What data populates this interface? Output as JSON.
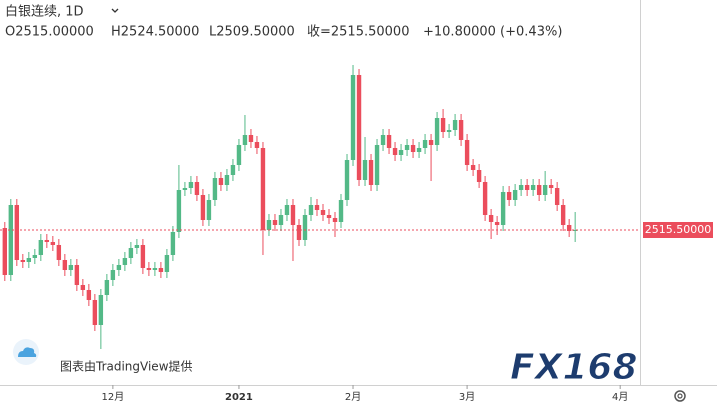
{
  "chart_data": {
    "type": "candlestick",
    "title": "白银连续, 1D",
    "header": [
      "O2515.00000",
      "H2524.50000",
      "L2509.50000",
      "收=2515.50000",
      "+10.80000 (+0.43%)"
    ],
    "watermark": "图表由TradingView提供",
    "logo": "FX168",
    "up_color": "#53b987",
    "down_color": "#eb4d5c",
    "last_price": {
      "value": 2515.5,
      "label": "2515.50000"
    },
    "last_price_color": "#eb4d5c",
    "xlim": [
      -0.8,
      105.8
    ],
    "xticks": [
      {
        "value": 18,
        "label": "12月"
      },
      {
        "value": 39,
        "label": "2021"
      },
      {
        "value": 58,
        "label": "2月"
      },
      {
        "value": 77,
        "label": "3月"
      },
      {
        "value": 102.5,
        "label": "4月"
      }
    ],
    "ylim": [
      2438,
      2630.5
    ],
    "series": {
      "open": [
        2516.5,
        2493,
        2528,
        2500.5,
        2499.5,
        2501.5,
        2503,
        2510.5,
        2509.5,
        2508,
        2500.5,
        2495.5,
        2498,
        2488,
        2485.5,
        2480.5,
        2468,
        2483,
        2490.5,
        2495.5,
        2498,
        2501.5,
        2506.5,
        2508,
        2496.5,
        2495.5,
        2496.5,
        2494.5,
        2503,
        2514.5,
        2535.5,
        2536.5,
        2539.5,
        2533,
        2520.5,
        2530.5,
        2541.5,
        2538,
        2543,
        2548,
        2558,
        2563,
        2559.5,
        2556.5,
        2515.5,
        2520.5,
        2518,
        2523,
        2528,
        2518,
        2510.5,
        2523,
        2528,
        2525.5,
        2523,
        2521.5,
        2519.5,
        2530.5,
        2550.5,
        2593,
        2540.5,
        2550.5,
        2538,
        2558,
        2563,
        2556.5,
        2553,
        2555.5,
        2558,
        2554.5,
        2556.5,
        2560.5,
        2558,
        2571.5,
        2564.5,
        2565.5,
        2570.5,
        2560.5,
        2548,
        2545.5,
        2539.5,
        2523,
        2519.5,
        2518,
        2534.5,
        2530.5,
        2535.5,
        2538,
        2535.5,
        2538,
        2533,
        2538,
        2536.5,
        2528,
        2518,
        2515
      ],
      "high": [
        2519.5,
        2531,
        2531,
        2503.5,
        2504.5,
        2506,
        2513.5,
        2513.5,
        2512.5,
        2511,
        2503.5,
        2501,
        2501,
        2491,
        2488.5,
        2483.5,
        2486,
        2493.5,
        2498.5,
        2501,
        2504.5,
        2509.5,
        2511,
        2511,
        2499.5,
        2499.5,
        2499.5,
        2506,
        2517.5,
        2548,
        2539.5,
        2542.5,
        2542.5,
        2536,
        2533.5,
        2544.5,
        2544.5,
        2546,
        2551,
        2561,
        2573,
        2566,
        2562.5,
        2559.5,
        2523.5,
        2523.5,
        2526,
        2531,
        2531,
        2521,
        2526,
        2532,
        2531,
        2528.5,
        2526,
        2524.5,
        2533.5,
        2553.5,
        2598,
        2596,
        2562,
        2553.5,
        2561,
        2566,
        2566,
        2559.5,
        2558.5,
        2561,
        2561,
        2559.5,
        2563.5,
        2563.5,
        2574.5,
        2576,
        2568.5,
        2573.5,
        2573.5,
        2563.5,
        2551,
        2548.5,
        2542.5,
        2526,
        2522.5,
        2537.5,
        2537.5,
        2538.5,
        2541,
        2541,
        2541,
        2541,
        2545,
        2541,
        2539.5,
        2531,
        2521,
        2524.5
      ],
      "low": [
        2490,
        2490,
        2497.5,
        2496.5,
        2496.5,
        2498.5,
        2500,
        2506.5,
        2505,
        2497.5,
        2492.5,
        2492.5,
        2485,
        2482.5,
        2477.5,
        2465,
        2456,
        2480,
        2487.5,
        2492.5,
        2495,
        2498.5,
        2503.5,
        2493.5,
        2492.5,
        2492.5,
        2491.5,
        2491.5,
        2500,
        2511.5,
        2532.5,
        2533.5,
        2530,
        2517.5,
        2517.5,
        2527.5,
        2535,
        2535,
        2540,
        2545,
        2555,
        2556.5,
        2553.5,
        2503,
        2512.5,
        2515,
        2515,
        2520,
        2500,
        2507.5,
        2507.5,
        2520,
        2522.5,
        2520,
        2518.5,
        2512,
        2516.5,
        2527.5,
        2547.5,
        2537.5,
        2537.5,
        2535,
        2535,
        2555,
        2553.5,
        2550,
        2550,
        2552.5,
        2551.5,
        2551.5,
        2553.5,
        2540,
        2555,
        2561.5,
        2561.5,
        2562.5,
        2557.5,
        2545,
        2542.5,
        2536.5,
        2520,
        2511,
        2513,
        2515,
        2527.5,
        2527.5,
        2532.5,
        2532.5,
        2532.5,
        2530,
        2530,
        2533.5,
        2525,
        2515,
        2512,
        2509.5
      ],
      "close": [
        2493,
        2528,
        2500.5,
        2499.5,
        2501.5,
        2503,
        2510.5,
        2509.5,
        2508,
        2500.5,
        2495.5,
        2498,
        2488,
        2485.5,
        2480.5,
        2468,
        2483,
        2490.5,
        2495.5,
        2498,
        2501.5,
        2506.5,
        2508,
        2496.5,
        2495.5,
        2496.5,
        2494.5,
        2503,
        2514.5,
        2535.5,
        2536.5,
        2539.5,
        2533,
        2520.5,
        2530.5,
        2541.5,
        2538,
        2543,
        2548,
        2558,
        2563,
        2559.5,
        2556.5,
        2515.5,
        2520.5,
        2518,
        2523,
        2528,
        2518,
        2510.5,
        2523,
        2528,
        2525.5,
        2523,
        2521.5,
        2519.5,
        2530.5,
        2550.5,
        2593,
        2540.5,
        2550.5,
        2538,
        2558,
        2563,
        2556.5,
        2553,
        2555.5,
        2558,
        2554.5,
        2556.5,
        2560.5,
        2558,
        2571.5,
        2564.5,
        2565.5,
        2570.5,
        2560.5,
        2548,
        2545.5,
        2539.5,
        2523,
        2519.5,
        2518,
        2534.5,
        2530.5,
        2535.5,
        2538,
        2535.5,
        2538,
        2533,
        2538,
        2536.5,
        2528,
        2518,
        2515,
        2515.5
      ]
    }
  }
}
